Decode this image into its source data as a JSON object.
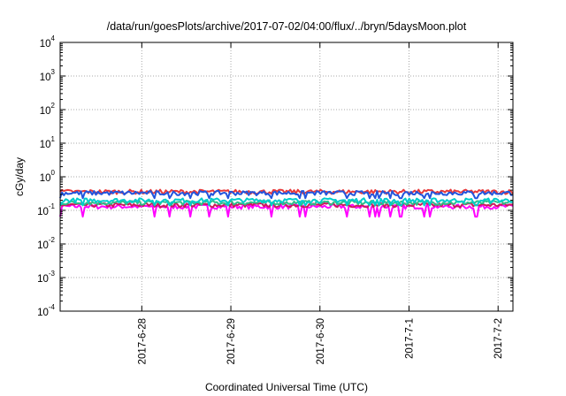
{
  "chart_data": {
    "type": "line",
    "title": "/data/run/goesPlots/archive/2017-07-02/04:00/flux/../bryn/5daysMoon.plot",
    "xlabel": "Coordinated Universal Time (UTC)",
    "ylabel": "cGy/day",
    "yscale": "log",
    "ylim": [
      0.0001,
      10000
    ],
    "xlim": [
      "2017-06-27 02:00",
      "2017-07-02 04:00"
    ],
    "grid": true,
    "x_ticks": [
      {
        "value": "2017-06-28",
        "label": "2017-6-28"
      },
      {
        "value": "2017-06-29",
        "label": "2017-6-29"
      },
      {
        "value": "2017-06-30",
        "label": "2017-6-30"
      },
      {
        "value": "2017-07-01",
        "label": "2017-7-1"
      },
      {
        "value": "2017-07-02",
        "label": "2017-7-2"
      }
    ],
    "y_ticks": [
      {
        "base": "10",
        "exp": "4",
        "value": 10000
      },
      {
        "base": "10",
        "exp": "3",
        "value": 1000
      },
      {
        "base": "10",
        "exp": "2",
        "value": 100
      },
      {
        "base": "10",
        "exp": "1",
        "value": 10
      },
      {
        "base": "10",
        "exp": "0",
        "value": 1
      },
      {
        "base": "10",
        "exp": "-1",
        "value": 0.1
      },
      {
        "base": "10",
        "exp": "-2",
        "value": 0.01
      },
      {
        "base": "10",
        "exp": "-3",
        "value": 0.001
      },
      {
        "base": "10",
        "exp": "-4",
        "value": 0.0001
      }
    ],
    "series": [
      {
        "color": "#ff00ff",
        "level": 0.13,
        "dips": true
      },
      {
        "color": "#cc1a5a",
        "level": 0.145,
        "dips": false
      },
      {
        "color": "#2ebf8a",
        "level": 0.17,
        "dips": false
      },
      {
        "color": "#00cccc",
        "level": 0.2,
        "dips": true
      },
      {
        "color": "#e8393a",
        "level": 0.36,
        "dips": false
      },
      {
        "color": "#2255dd",
        "level": 0.33,
        "dips": true
      }
    ]
  }
}
